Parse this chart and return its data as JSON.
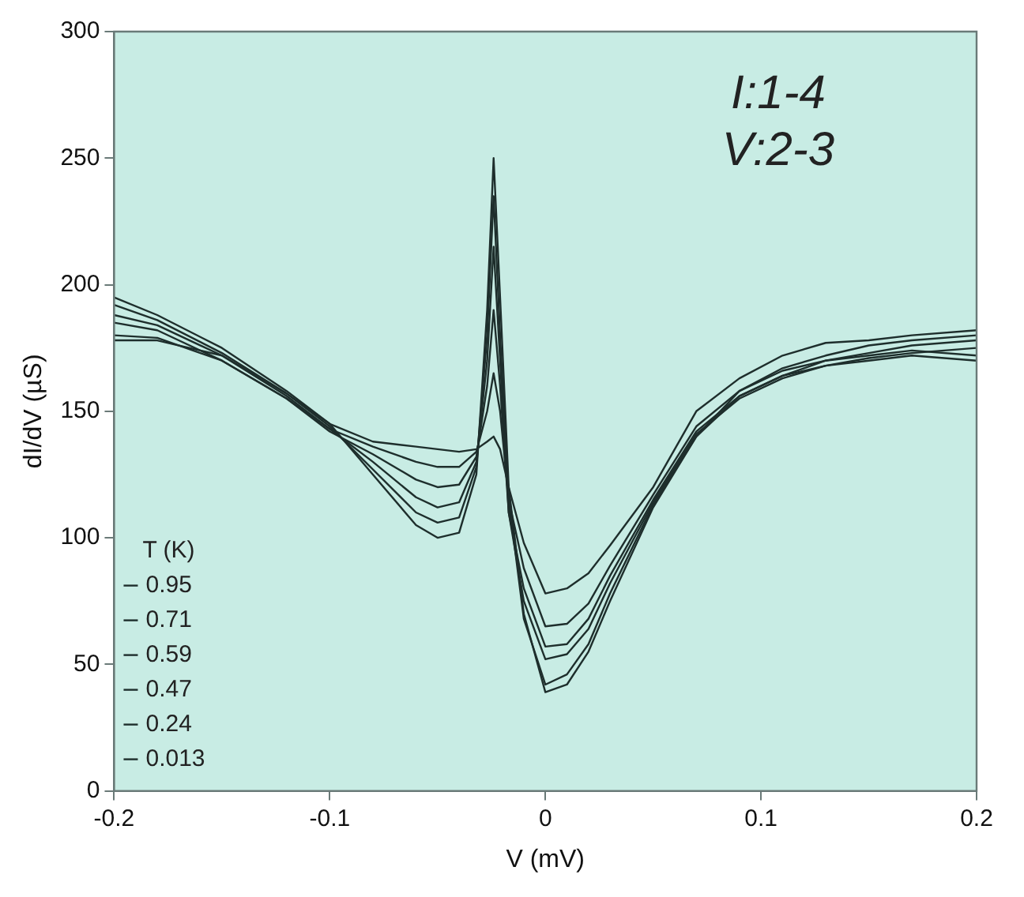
{
  "chart_data": {
    "type": "line",
    "xlabel": "V (mV)",
    "ylabel": "dI/dV (µS)",
    "legend_title": "T (K)",
    "legend": "bottom left",
    "x": [
      -0.2,
      -0.18,
      -0.15,
      -0.12,
      -0.1,
      -0.08,
      -0.06,
      -0.05,
      -0.04,
      -0.032,
      -0.027,
      -0.024,
      -0.021,
      -0.017,
      -0.01,
      0,
      0.01,
      0.02,
      0.03,
      0.05,
      0.07,
      0.09,
      0.11,
      0.13,
      0.15,
      0.17,
      0.2
    ],
    "series": [
      {
        "name": "0.95",
        "color": "#1e2e2c",
        "values": [
          178,
          178,
          172,
          157,
          145,
          138,
          136,
          135,
          134,
          135,
          138,
          140,
          135,
          120,
          98,
          78,
          80,
          86,
          97,
          120,
          150,
          163,
          172,
          177,
          178,
          180,
          182
        ]
      },
      {
        "name": "0.71",
        "color": "#1e2e2c",
        "values": [
          180,
          179,
          170,
          155,
          143,
          136,
          130,
          128,
          128,
          134,
          150,
          165,
          150,
          115,
          88,
          65,
          66,
          74,
          89,
          117,
          144,
          158,
          167,
          172,
          176,
          178,
          180
        ]
      },
      {
        "name": "0.59",
        "color": "#1e2e2c",
        "values": [
          185,
          182,
          170,
          155,
          142,
          133,
          123,
          120,
          121,
          132,
          160,
          190,
          160,
          110,
          80,
          57,
          58,
          68,
          85,
          115,
          142,
          156,
          164,
          170,
          173,
          176,
          178
        ]
      },
      {
        "name": "0.47",
        "color": "#1e2e2c",
        "values": [
          188,
          184,
          172,
          156,
          143,
          130,
          116,
          112,
          114,
          130,
          170,
          215,
          170,
          110,
          75,
          52,
          54,
          64,
          82,
          114,
          141,
          155,
          163,
          168,
          171,
          173,
          175
        ]
      },
      {
        "name": "0.24",
        "color": "#1e2e2c",
        "values": [
          192,
          186,
          173,
          157,
          144,
          127,
          110,
          106,
          108,
          128,
          180,
          235,
          180,
          115,
          68,
          42,
          46,
          58,
          78,
          113,
          140,
          156,
          164,
          168,
          170,
          172,
          170
        ]
      },
      {
        "name": "0.013",
        "color": "#1e2e2c",
        "values": [
          195,
          188,
          175,
          158,
          145,
          125,
          105,
          100,
          102,
          125,
          190,
          250,
          195,
          120,
          70,
          39,
          42,
          55,
          75,
          112,
          140,
          158,
          166,
          170,
          172,
          174,
          172
        ]
      }
    ],
    "annotations": [
      "I:1-4",
      "V:2-3"
    ],
    "xlim": [
      -0.2,
      0.2
    ],
    "xticks": [
      -0.2,
      -0.1,
      0,
      0.1,
      0.2
    ],
    "ylim": [
      0,
      300
    ],
    "yticks": [
      0,
      50,
      100,
      150,
      200,
      250,
      300
    ],
    "grid": false,
    "marker": "none",
    "line_style": "solid"
  }
}
